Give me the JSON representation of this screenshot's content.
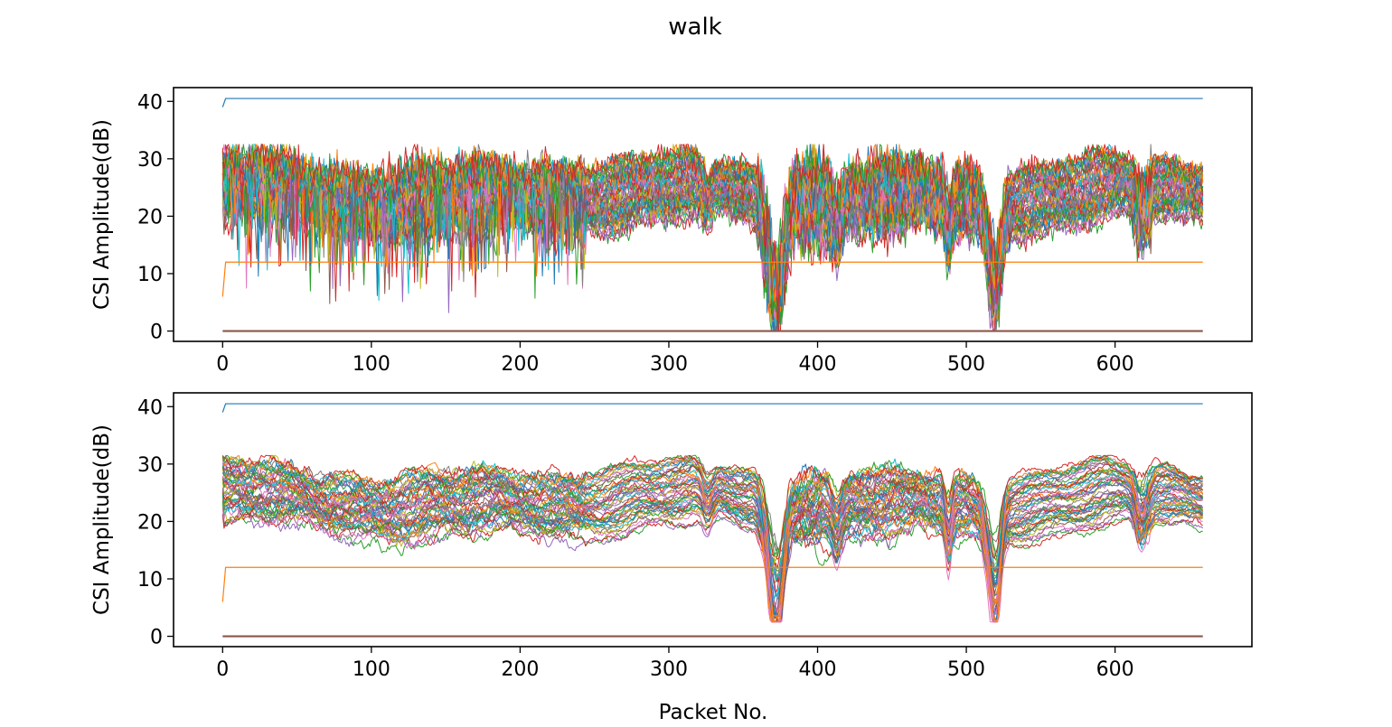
{
  "figure": {
    "title": "walk"
  },
  "chart_data": [
    {
      "type": "line",
      "title": "",
      "xlabel": "",
      "ylabel": "CSI Amplitude(dB)",
      "xlim": [
        -33,
        692
      ],
      "ylim": [
        -1.8,
        42.4
      ],
      "xticks": [
        0,
        100,
        200,
        300,
        400,
        500,
        600
      ],
      "yticks": [
        0,
        10,
        20,
        30,
        40
      ],
      "grid": false,
      "legend": false,
      "packets": 660,
      "constant_series": [
        {
          "color": "#1f77b4",
          "start": 39,
          "value": 40.5
        },
        {
          "color": "#ff7f0e",
          "start": 6,
          "value": 12
        },
        {
          "color": "#8c564b",
          "start": 0,
          "value": 0
        }
      ],
      "noisy_band": {
        "series_count": 52,
        "smoothed": false,
        "typical_low": 15,
        "typical_high": 31,
        "min": 0,
        "max": 32.5
      }
    },
    {
      "type": "line",
      "title": "",
      "xlabel": "Packet No.",
      "ylabel": "CSI Amplitude(dB)",
      "xlim": [
        -33,
        692
      ],
      "ylim": [
        -1.8,
        42.4
      ],
      "xticks": [
        0,
        100,
        200,
        300,
        400,
        500,
        600
      ],
      "yticks": [
        0,
        10,
        20,
        30,
        40
      ],
      "grid": false,
      "legend": false,
      "packets": 660,
      "constant_series": [
        {
          "color": "#1f77b4",
          "start": 39,
          "value": 40.5
        },
        {
          "color": "#ff7f0e",
          "start": 6,
          "value": 12
        },
        {
          "color": "#8c564b",
          "start": 0,
          "value": 0
        }
      ],
      "noisy_band": {
        "series_count": 52,
        "smoothed": true,
        "typical_low": 15,
        "typical_high": 31,
        "min": 2.5,
        "max": 31.5
      }
    }
  ],
  "colors": [
    "#1f77b4",
    "#ff7f0e",
    "#2ca02c",
    "#d62728",
    "#9467bd",
    "#8c564b",
    "#e377c2",
    "#7f7f7f",
    "#bcbd22",
    "#17becf"
  ]
}
